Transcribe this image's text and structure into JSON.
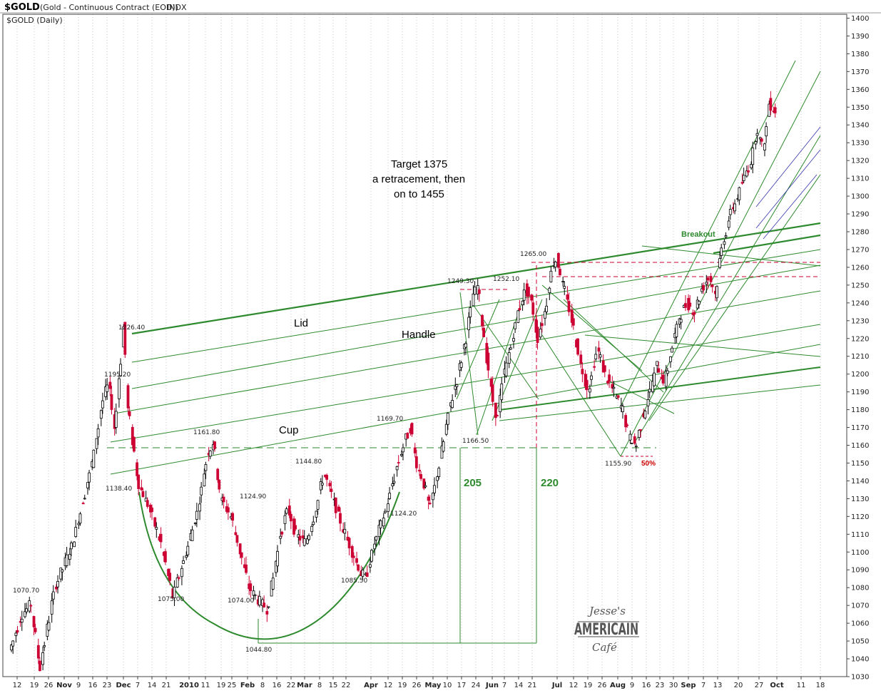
{
  "header": {
    "symbol": "$GOLD",
    "description": "(Gold - Continuous Contract (EOD))",
    "exchange": "INDX",
    "subtitle": "$GOLD (Daily)"
  },
  "annotations": {
    "target_line1": "Target 1375",
    "target_line2": "a retracement,  then",
    "target_line3": "on  to 1455",
    "lid": "Lid",
    "handle": "Handle",
    "cup": "Cup",
    "breakout": "Breakout",
    "measure_205": "205",
    "measure_220": "220",
    "fifty_pct": "50%"
  },
  "logo": {
    "line1": "Jesse's",
    "line2": "AMERICAIN",
    "line3": "Café"
  },
  "colors": {
    "up_candle": "#000000",
    "down_candle": "#cc0033",
    "trendline": "#2e8a2e",
    "dashed_level": "#cc0033",
    "grid": "#000000",
    "minor_channel": "#3333aa"
  },
  "chart_data": {
    "type": "candlestick",
    "title": "$GOLD (Daily)",
    "ylim": [
      1030,
      1400
    ],
    "y_ticks": [
      1030,
      1040,
      1050,
      1060,
      1070,
      1080,
      1090,
      1100,
      1110,
      1120,
      1130,
      1140,
      1150,
      1160,
      1170,
      1180,
      1190,
      1200,
      1210,
      1220,
      1230,
      1240,
      1250,
      1260,
      1270,
      1280,
      1290,
      1300,
      1310,
      1320,
      1330,
      1340,
      1350,
      1360,
      1370,
      1380,
      1390,
      1400
    ],
    "x_ticks": [
      {
        "label": "12",
        "bold": false
      },
      {
        "label": "19",
        "bold": false
      },
      {
        "label": "26",
        "bold": false
      },
      {
        "label": "Nov",
        "bold": true
      },
      {
        "label": "9",
        "bold": false
      },
      {
        "label": "16",
        "bold": false
      },
      {
        "label": "23",
        "bold": false
      },
      {
        "label": "Dec",
        "bold": true
      },
      {
        "label": "7",
        "bold": false
      },
      {
        "label": "14",
        "bold": false
      },
      {
        "label": "21",
        "bold": false
      },
      {
        "label": "2010",
        "bold": true
      },
      {
        "label": "11",
        "bold": false
      },
      {
        "label": "19",
        "bold": false
      },
      {
        "label": "25",
        "bold": false
      },
      {
        "label": "Feb",
        "bold": true
      },
      {
        "label": "8",
        "bold": false
      },
      {
        "label": "16",
        "bold": false
      },
      {
        "label": "22",
        "bold": false
      },
      {
        "label": "Mar",
        "bold": true
      },
      {
        "label": "8",
        "bold": false
      },
      {
        "label": "15",
        "bold": false
      },
      {
        "label": "22",
        "bold": false
      },
      {
        "label": "Apr",
        "bold": true
      },
      {
        "label": "12",
        "bold": false
      },
      {
        "label": "19",
        "bold": false
      },
      {
        "label": "26",
        "bold": false
      },
      {
        "label": "May",
        "bold": true
      },
      {
        "label": "10",
        "bold": false
      },
      {
        "label": "17",
        "bold": false
      },
      {
        "label": "24",
        "bold": false
      },
      {
        "label": "Jun",
        "bold": true
      },
      {
        "label": "7",
        "bold": false
      },
      {
        "label": "14",
        "bold": false
      },
      {
        "label": "21",
        "bold": false
      },
      {
        "label": "Jul",
        "bold": true
      },
      {
        "label": "12",
        "bold": false
      },
      {
        "label": "19",
        "bold": false
      },
      {
        "label": "26",
        "bold": false
      },
      {
        "label": "Aug",
        "bold": true
      },
      {
        "label": "9",
        "bold": false
      },
      {
        "label": "16",
        "bold": false
      },
      {
        "label": "23",
        "bold": false
      },
      {
        "label": "30",
        "bold": false
      },
      {
        "label": "Sep",
        "bold": true
      },
      {
        "label": "7",
        "bold": false
      },
      {
        "label": "13",
        "bold": false
      },
      {
        "label": "20",
        "bold": false
      },
      {
        "label": "27",
        "bold": false
      },
      {
        "label": "Oct",
        "bold": true
      },
      {
        "label": "11",
        "bold": false
      },
      {
        "label": "18",
        "bold": false
      }
    ],
    "waypoints": [
      [
        0,
        1045
      ],
      [
        8,
        1065
      ],
      [
        14,
        1070.7
      ],
      [
        20,
        1035
      ],
      [
        30,
        1080
      ],
      [
        42,
        1105
      ],
      [
        55,
        1150
      ],
      [
        62,
        1185
      ],
      [
        66,
        1195.2
      ],
      [
        70,
        1170
      ],
      [
        76,
        1226.4
      ],
      [
        79,
        1180
      ],
      [
        86,
        1138.4
      ],
      [
        93,
        1125
      ],
      [
        101,
        1105
      ],
      [
        109,
        1075
      ],
      [
        118,
        1100
      ],
      [
        126,
        1125
      ],
      [
        132,
        1155
      ],
      [
        136,
        1161.8
      ],
      [
        141,
        1130
      ],
      [
        148,
        1120
      ],
      [
        154,
        1100
      ],
      [
        160,
        1080
      ],
      [
        165,
        1074
      ],
      [
        172,
        1068
      ],
      [
        176,
        1085
      ],
      [
        181,
        1110
      ],
      [
        186,
        1124.9
      ],
      [
        191,
        1110
      ],
      [
        198,
        1105
      ],
      [
        205,
        1125
      ],
      [
        210,
        1144.8
      ],
      [
        216,
        1130
      ],
      [
        222,
        1115
      ],
      [
        229,
        1100
      ],
      [
        235,
        1088
      ],
      [
        238,
        1085.5
      ],
      [
        244,
        1105
      ],
      [
        252,
        1125
      ],
      [
        258,
        1145
      ],
      [
        264,
        1162
      ],
      [
        268,
        1169.7
      ],
      [
        272,
        1150
      ],
      [
        277,
        1138
      ],
      [
        281,
        1124.2
      ],
      [
        287,
        1148
      ],
      [
        294,
        1180
      ],
      [
        300,
        1200
      ],
      [
        305,
        1220
      ],
      [
        310,
        1245
      ],
      [
        313,
        1249.3
      ],
      [
        318,
        1215
      ],
      [
        323,
        1185
      ],
      [
        326,
        1175
      ],
      [
        330,
        1198
      ],
      [
        335,
        1215
      ],
      [
        340,
        1235
      ],
      [
        345,
        1248
      ],
      [
        349,
        1240
      ],
      [
        353,
        1220
      ],
      [
        358,
        1235
      ],
      [
        363,
        1262
      ],
      [
        366,
        1265
      ],
      [
        370,
        1250
      ],
      [
        376,
        1230
      ],
      [
        382,
        1205
      ],
      [
        387,
        1190
      ],
      [
        393,
        1215
      ],
      [
        398,
        1200
      ],
      [
        404,
        1190
      ],
      [
        410,
        1180
      ],
      [
        414,
        1165
      ],
      [
        419,
        1160
      ],
      [
        423,
        1175
      ],
      [
        428,
        1190
      ],
      [
        433,
        1205
      ],
      [
        438,
        1195
      ],
      [
        443,
        1215
      ],
      [
        448,
        1232
      ],
      [
        453,
        1240
      ],
      [
        458,
        1235
      ],
      [
        463,
        1248
      ],
      [
        468,
        1255
      ],
      [
        472,
        1245
      ],
      [
        476,
        1270
      ],
      [
        482,
        1290
      ],
      [
        487,
        1300
      ],
      [
        491,
        1310
      ],
      [
        496,
        1320
      ],
      [
        500,
        1338
      ],
      [
        504,
        1325
      ],
      [
        508,
        1352
      ],
      [
        512,
        1348
      ]
    ],
    "labeled_points": [
      {
        "label": "1070.70",
        "value": 1070.7
      },
      {
        "label": "1195.20",
        "value": 1195.2
      },
      {
        "label": "1226.40",
        "value": 1226.4
      },
      {
        "label": "1138.40",
        "value": 1138.4
      },
      {
        "label": "1075.00",
        "value": 1075.0
      },
      {
        "label": "1161.80",
        "value": 1161.8
      },
      {
        "label": "1124.90",
        "value": 1124.9
      },
      {
        "label": "1074.00",
        "value": 1074.0
      },
      {
        "label": "1044.80",
        "value": 1044.8
      },
      {
        "label": "1144.80",
        "value": 1144.8
      },
      {
        "label": "1085.50",
        "value": 1085.5
      },
      {
        "label": "1169.70",
        "value": 1169.7
      },
      {
        "label": "1124.20",
        "value": 1124.2
      },
      {
        "label": "1249.30",
        "value": 1249.3
      },
      {
        "label": "1166.50",
        "value": 1166.5
      },
      {
        "label": "1252.10",
        "value": 1252.1
      },
      {
        "label": "1265.00",
        "value": 1265.0
      },
      {
        "label": "1155.90",
        "value": 1155.9
      }
    ]
  }
}
